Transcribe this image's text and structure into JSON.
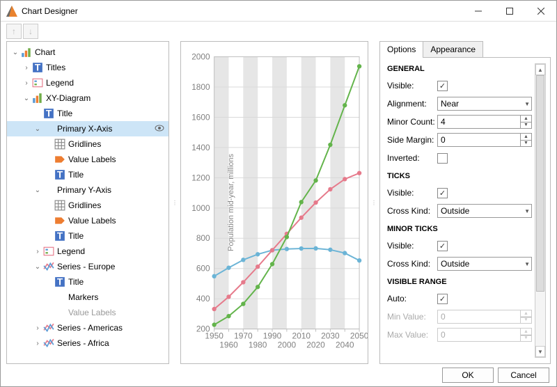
{
  "window": {
    "title": "Chart Designer"
  },
  "toolbar": {
    "up_tip": "Move Up",
    "down_tip": "Move Down"
  },
  "tree": [
    {
      "indent": 0,
      "exp": "v",
      "icon": "chart",
      "label": "Chart"
    },
    {
      "indent": 1,
      "exp": ">",
      "icon": "titles",
      "label": "Titles"
    },
    {
      "indent": 1,
      "exp": ">",
      "icon": "legend",
      "label": "Legend"
    },
    {
      "indent": 1,
      "exp": "v",
      "icon": "diag",
      "label": "XY-Diagram"
    },
    {
      "indent": 2,
      "exp": "",
      "icon": "t",
      "label": "Title"
    },
    {
      "indent": 2,
      "exp": "v",
      "icon": "",
      "label": "Primary X-Axis",
      "sel": true,
      "eye": true
    },
    {
      "indent": 3,
      "exp": "",
      "icon": "grid",
      "label": "Gridlines"
    },
    {
      "indent": 3,
      "exp": "",
      "icon": "vlabel",
      "label": "Value Labels"
    },
    {
      "indent": 3,
      "exp": "",
      "icon": "t",
      "label": "Title"
    },
    {
      "indent": 2,
      "exp": "v",
      "icon": "",
      "label": "Primary Y-Axis"
    },
    {
      "indent": 3,
      "exp": "",
      "icon": "grid",
      "label": "Gridlines"
    },
    {
      "indent": 3,
      "exp": "",
      "icon": "vlabel",
      "label": "Value Labels"
    },
    {
      "indent": 3,
      "exp": "",
      "icon": "t",
      "label": "Title"
    },
    {
      "indent": 2,
      "exp": ">",
      "icon": "legend",
      "label": "Legend"
    },
    {
      "indent": 2,
      "exp": "v",
      "icon": "series",
      "label": "Series - Europe"
    },
    {
      "indent": 3,
      "exp": "",
      "icon": "t",
      "label": "Title"
    },
    {
      "indent": 3,
      "exp": "",
      "icon": "",
      "label": "Markers"
    },
    {
      "indent": 3,
      "exp": "",
      "icon": "",
      "label": "Value Labels",
      "dim": true
    },
    {
      "indent": 2,
      "exp": ">",
      "icon": "series",
      "label": "Series - Americas"
    },
    {
      "indent": 2,
      "exp": ">",
      "icon": "series",
      "label": "Series - Africa"
    }
  ],
  "chart": {
    "ylabel": "Population mid-year, millions",
    "x_ticks": [
      1950,
      1960,
      1970,
      1980,
      1990,
      2000,
      2010,
      2020,
      2030,
      2040,
      2050
    ],
    "y_ticks": [
      200,
      400,
      600,
      800,
      1000,
      1200,
      1400,
      1600,
      1800,
      2000
    ],
    "y_min": 200,
    "y_max": 2000,
    "plot_bg": "#ffffff",
    "band_color": "#e6e6e6",
    "grid_color": "#d9d9d9",
    "axis_color": "#bfbfbf",
    "tick_label_color": "#808080",
    "marker_radius": 3.2,
    "line_width": 2,
    "series": [
      {
        "name": "Europe",
        "color": "#6bb4d6",
        "data": [
          549,
          605,
          657,
          694,
          721,
          729,
          732,
          733,
          724,
          702,
          653
        ]
      },
      {
        "name": "Americas",
        "color": "#e67a8b",
        "data": [
          332,
          413,
          509,
          612,
          721,
          829,
          936,
          1036,
          1124,
          1191,
          1231
        ]
      },
      {
        "name": "Africa",
        "color": "#63b44b",
        "data": [
          228,
          285,
          366,
          478,
          629,
          808,
          1039,
          1182,
          1418,
          1679,
          1937
        ]
      }
    ]
  },
  "tabs": {
    "options": "Options",
    "appearance": "Appearance"
  },
  "props": {
    "sections": {
      "general": "GENERAL",
      "ticks": "TICKS",
      "minor_ticks": "MINOR TICKS",
      "visible_range": "VISIBLE RANGE"
    },
    "general": {
      "visible_label": "Visible:",
      "visible": true,
      "alignment_label": "Alignment:",
      "alignment": "Near",
      "minor_count_label": "Minor Count:",
      "minor_count": "4",
      "side_margin_label": "Side Margin:",
      "side_margin": "0",
      "inverted_label": "Inverted:",
      "inverted": false
    },
    "ticks": {
      "visible_label": "Visible:",
      "visible": true,
      "cross_kind_label": "Cross Kind:",
      "cross_kind": "Outside"
    },
    "minor_ticks": {
      "visible_label": "Visible:",
      "visible": true,
      "cross_kind_label": "Cross Kind:",
      "cross_kind": "Outside"
    },
    "visible_range": {
      "auto_label": "Auto:",
      "auto": true,
      "min_label": "Min Value:",
      "min": "0",
      "max_label": "Max Value:",
      "max": "0"
    }
  },
  "footer": {
    "ok": "OK",
    "cancel": "Cancel"
  }
}
